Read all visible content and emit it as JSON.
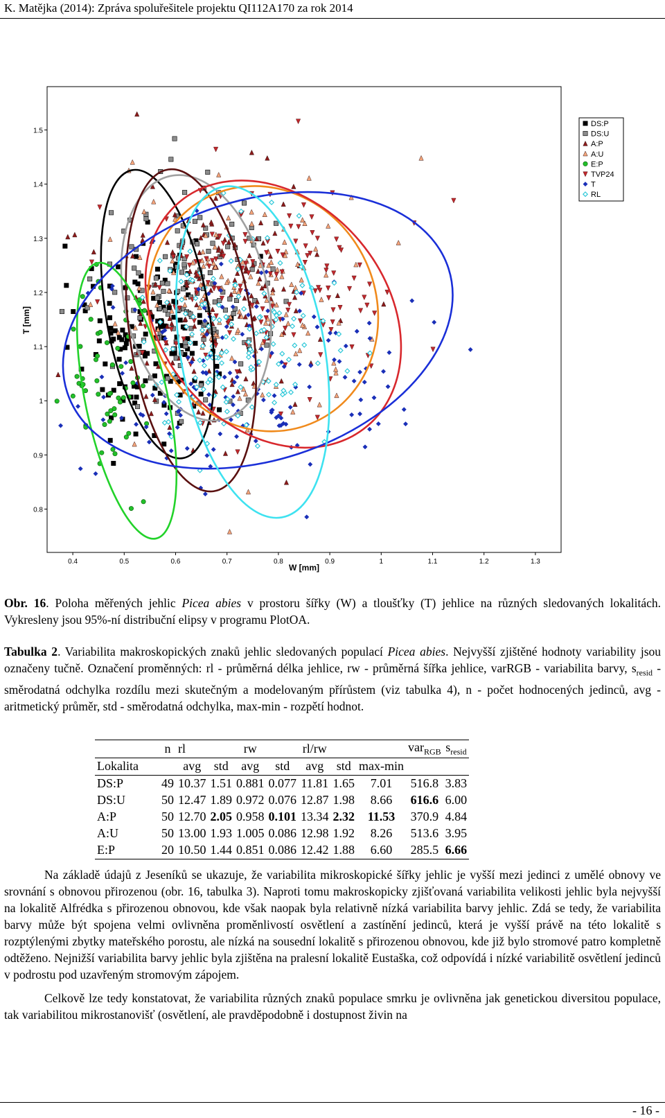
{
  "header": "K. Matějka (2014): Zpráva spoluřešitele projektu QI112A170 za rok 2014",
  "chart_data": {
    "type": "scatter",
    "xlabel": "W [mm]",
    "ylabel": "T [mm]",
    "xlim": [
      0.35,
      1.35
    ],
    "ylim": [
      0.72,
      1.58
    ],
    "xticks": [
      "0.4",
      "0.5",
      "0.6",
      "0.7",
      "0.8",
      "0.9",
      "1",
      "1.1",
      "1.2",
      "1.3"
    ],
    "yticks": [
      "0.8",
      "0.9",
      "1",
      "1.1",
      "1.2",
      "1.3",
      "1.4",
      "1.5"
    ],
    "legend_position": "top-right",
    "series": [
      {
        "name": "DS:P",
        "marker": "square",
        "color": "#000000",
        "cx": 0.55,
        "cy": 1.12,
        "sx": 0.07,
        "sy": 0.09,
        "n": 49
      },
      {
        "name": "DS:U",
        "marker": "square",
        "color": "#8c8c8c",
        "cx": 0.63,
        "cy": 1.2,
        "sx": 0.08,
        "sy": 0.1,
        "n": 50
      },
      {
        "name": "A:P",
        "marker": "triangle",
        "color": "#8b1a1a",
        "cx": 0.67,
        "cy": 1.18,
        "sx": 0.1,
        "sy": 0.12,
        "n": 50
      },
      {
        "name": "A:U",
        "marker": "triangle",
        "color": "#f4a57a",
        "cx": 0.74,
        "cy": 1.19,
        "sx": 0.12,
        "sy": 0.11,
        "n": 50
      },
      {
        "name": "E:P",
        "marker": "circle",
        "color": "#22c02a",
        "cx": 0.47,
        "cy": 1.02,
        "sx": 0.05,
        "sy": 0.1,
        "n": 20
      },
      {
        "name": "TVP24",
        "marker": "triangle-down",
        "color": "#c0282d",
        "cx": 0.78,
        "cy": 1.2,
        "sx": 0.13,
        "sy": 0.1,
        "n": 50
      },
      {
        "name": "T",
        "marker": "diamond",
        "color": "#1a2fb8",
        "cx": 0.73,
        "cy": 1.05,
        "sx": 0.15,
        "sy": 0.1,
        "n": 55
      },
      {
        "name": "RL",
        "marker": "diamond-open",
        "color": "#2ec8d8",
        "cx": 0.72,
        "cy": 1.1,
        "sx": 0.1,
        "sy": 0.1,
        "n": 50
      }
    ],
    "ellipses": [
      {
        "series": "DS:P",
        "color": "#000000",
        "cx": 0.565,
        "cy": 1.16,
        "rx": 0.1,
        "ry": 0.27,
        "rot": -10
      },
      {
        "series": "DS:U",
        "color": "#a0a0a0",
        "cx": 0.64,
        "cy": 1.19,
        "rx": 0.14,
        "ry": 0.23,
        "rot": -12
      },
      {
        "series": "A:P",
        "color": "#5a1010",
        "cx": 0.63,
        "cy": 1.13,
        "rx": 0.12,
        "ry": 0.3,
        "rot": -8
      },
      {
        "series": "A:U",
        "color": "#f08a1c",
        "cx": 0.77,
        "cy": 1.17,
        "rx": 0.22,
        "ry": 0.23,
        "rot": -25
      },
      {
        "series": "E:P",
        "color": "#22d22a",
        "cx": 0.505,
        "cy": 1.0,
        "rx": 0.08,
        "ry": 0.26,
        "rot": -12
      },
      {
        "series": "TVP24",
        "color": "#d8282d",
        "cx": 0.79,
        "cy": 1.16,
        "rx": 0.22,
        "ry": 0.27,
        "rot": -40
      },
      {
        "series": "T",
        "color": "#1a2fd8",
        "cx": 0.76,
        "cy": 1.13,
        "rx": 0.39,
        "ry": 0.24,
        "rot": -18
      },
      {
        "series": "RL",
        "color": "#3ee2f0",
        "cx": 0.75,
        "cy": 1.09,
        "rx": 0.14,
        "ry": 0.31,
        "rot": -10
      }
    ]
  },
  "figure_caption": {
    "label": "Obr. 16",
    "text_a": ". Poloha měřených jehlic ",
    "species": "Picea abies",
    "text_b": " v prostoru šířky (W) a tloušťky (T) jehlice na různých sledovaných lokalitách. Vykresleny jsou 95%-ní distribuční elipsy v programu PlotOA."
  },
  "table_caption": {
    "label": "Tabulka 2",
    "text_a": ". Variabilita makroskopických znaků jehlic sledovaných populací ",
    "species": "Picea abies",
    "text_b": ". Nejvyšší zjištěné hodnoty variability jsou označeny tučně.",
    "text_c": " Označení proměnných: rl - průměrná délka jehlice, rw - průměrná šířka jehlice, varRGB - variabilita barvy, s",
    "sub_resid": "resid",
    "text_d": " - směrodatná odchylka rozdílu mezi skutečným a modelovaným přírůstem (viz tabulka 4), n - počet hodnocených jedinců, avg - aritmetický průměr, std - směrodatná odchylka, max-min - rozpětí hodnot."
  },
  "table": {
    "head1": {
      "n": "n",
      "rl": "rl",
      "rw": "rw",
      "rlrw": "rl/rw",
      "var": "var",
      "var_sub": "RGB",
      "s": "s",
      "s_sub": "resid"
    },
    "head2": {
      "lokalita": "Lokalita",
      "avg1": "avg",
      "std1": "std",
      "avg2": "avg",
      "std2": "std",
      "avg3": "avg",
      "std3": "std",
      "maxmin": "max-min"
    },
    "rows": [
      {
        "loc": "DS:P",
        "n": "49",
        "rl_avg": "10.37",
        "rl_std": "1.51",
        "rw_avg": "0.881",
        "rw_std": "0.077",
        "rr_avg": "11.81",
        "rr_std": "1.65",
        "rr_mm": "7.01",
        "var": "516.8",
        "s": "3.83"
      },
      {
        "loc": "DS:U",
        "n": "50",
        "rl_avg": "12.47",
        "rl_std": "1.89",
        "rw_avg": "0.972",
        "rw_std": "0.076",
        "rr_avg": "12.87",
        "rr_std": "1.98",
        "rr_mm": "8.66",
        "var": "616.6",
        "s": "6.00"
      },
      {
        "loc": "A:P",
        "n": "50",
        "rl_avg": "12.70",
        "rl_std": "2.05",
        "rw_avg": "0.958",
        "rw_std": "0.101",
        "rr_avg": "13.34",
        "rr_std": "2.32",
        "rr_mm": "11.53",
        "var": "370.9",
        "s": "4.84"
      },
      {
        "loc": "A:U",
        "n": "50",
        "rl_avg": "13.00",
        "rl_std": "1.93",
        "rw_avg": "1.005",
        "rw_std": "0.086",
        "rr_avg": "12.98",
        "rr_std": "1.92",
        "rr_mm": "8.26",
        "var": "513.6",
        "s": "3.95"
      },
      {
        "loc": "E:P",
        "n": "20",
        "rl_avg": "10.50",
        "rl_std": "1.44",
        "rw_avg": "0.851",
        "rw_std": "0.086",
        "rr_avg": "12.42",
        "rr_std": "1.88",
        "rr_mm": "6.60",
        "var": "285.5",
        "s": "6.66"
      }
    ]
  },
  "paragraphs": [
    "Na základě údajů z Jeseníků se ukazuje, že variabilita mikroskopické šířky jehlic je vyšší mezi jedinci z umělé obnovy ve srovnání s obnovou přirozenou (obr. 16, tabulka 3). Naproti tomu makroskopicky zjišťovaná variabilita velikosti jehlic byla nejvyšší na lokalitě Alfrédka s přirozenou obnovou, kde však naopak byla relativně nízká variabilita barvy jehlic. Zdá se tedy, že variabilita barvy může být spojena velmi ovlivněna proměnlivostí osvětlení a zastínění jedinců, která je vyšší právě na této lokalitě s rozptýlenými zbytky mateřského porostu, ale nízká na sousední lokalitě s přirozenou obnovou, kde již bylo stromové patro kompletně odtěženo. Nejnižší variabilita barvy jehlic byla zjištěna na pralesní lokalitě Eustaška, což odpovídá i nízké variabilitě osvětlení jedinců v podrostu pod uzavřeným stromovým zápojem.",
    "Celkově lze tedy konstatovat, že variabilita různých znaků populace smrku je ovlivněna jak genetickou diversitou populace, tak variabilitou mikrostanovišť (osvětlení, ale pravděpodobně i dostupnost živin na"
  ],
  "page_number": "- 16 -"
}
